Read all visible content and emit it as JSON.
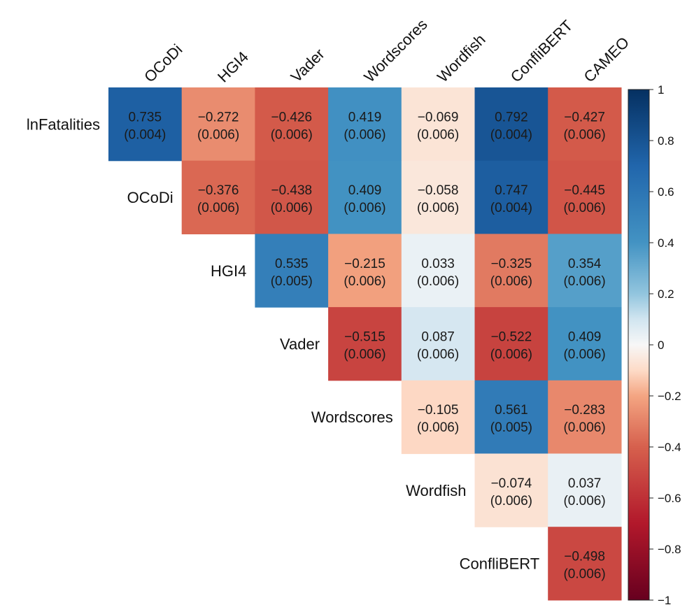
{
  "chart_data": {
    "type": "heatmap",
    "layout": "upper-triangle",
    "columns": [
      "OCoDi",
      "HGI4",
      "Vader",
      "Wordscores",
      "Wordfish",
      "ConfliBERT",
      "CAMEO"
    ],
    "rows": [
      "lnFatalities",
      "OCoDi",
      "HGI4",
      "Vader",
      "Wordscores",
      "Wordfish",
      "ConfliBERT"
    ],
    "cells": [
      [
        {
          "v": "0.735",
          "se": "(0.004)"
        },
        {
          "v": "−0.272",
          "se": "(0.006)"
        },
        {
          "v": "−0.426",
          "se": "(0.006)"
        },
        {
          "v": "0.419",
          "se": "(0.006)"
        },
        {
          "v": "−0.069",
          "se": "(0.006)"
        },
        {
          "v": "0.792",
          "se": "(0.004)"
        },
        {
          "v": "−0.427",
          "se": "(0.006)"
        }
      ],
      [
        null,
        {
          "v": "−0.376",
          "se": "(0.006)"
        },
        {
          "v": "−0.438",
          "se": "(0.006)"
        },
        {
          "v": "0.409",
          "se": "(0.006)"
        },
        {
          "v": "−0.058",
          "se": "(0.006)"
        },
        {
          "v": "0.747",
          "se": "(0.004)"
        },
        {
          "v": "−0.445",
          "se": "(0.006)"
        }
      ],
      [
        null,
        null,
        {
          "v": "0.535",
          "se": "(0.005)"
        },
        {
          "v": "−0.215",
          "se": "(0.006)"
        },
        {
          "v": "0.033",
          "se": "(0.006)"
        },
        {
          "v": "−0.325",
          "se": "(0.006)"
        },
        {
          "v": "0.354",
          "se": "(0.006)"
        }
      ],
      [
        null,
        null,
        null,
        {
          "v": "−0.515",
          "se": "(0.006)"
        },
        {
          "v": "0.087",
          "se": "(0.006)"
        },
        {
          "v": "−0.522",
          "se": "(0.006)"
        },
        {
          "v": "0.409",
          "se": "(0.006)"
        }
      ],
      [
        null,
        null,
        null,
        null,
        {
          "v": "−0.105",
          "se": "(0.006)"
        },
        {
          "v": "0.561",
          "se": "(0.005)"
        },
        {
          "v": "−0.283",
          "se": "(0.006)"
        }
      ],
      [
        null,
        null,
        null,
        null,
        null,
        {
          "v": "−0.074",
          "se": "(0.006)"
        },
        {
          "v": "0.037",
          "se": "(0.006)"
        }
      ],
      [
        null,
        null,
        null,
        null,
        null,
        null,
        {
          "v": "−0.498",
          "se": "(0.006)"
        }
      ]
    ],
    "colorbar": {
      "range": [
        -1,
        1
      ],
      "ticks": [
        "1",
        "0.8",
        "0.6",
        "0.4",
        "0.2",
        "0",
        "−0.2",
        "−0.4",
        "−0.6",
        "−0.8",
        "−1"
      ],
      "colormap": "RdBu diverging",
      "colors": {
        "neg_1": "#67001f",
        "neg_07": "#b2182b",
        "neg_04": "#d6604d",
        "neg_02": "#f4a582",
        "neg_01": "#fddbc7",
        "zero": "#f7f7f7",
        "pos_01": "#d1e5f0",
        "pos_02": "#92c5de",
        "pos_04": "#4393c3",
        "pos_07": "#2166ac",
        "pos_1": "#053061"
      }
    },
    "grid": false
  }
}
